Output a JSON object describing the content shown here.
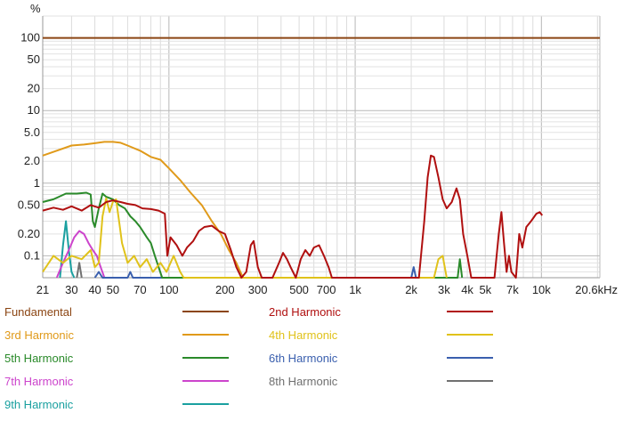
{
  "chart_data": {
    "type": "line",
    "title": "",
    "xlabel": "",
    "ylabel": "%",
    "x_scale": "log",
    "y_scale": "log",
    "xlim": [
      21,
      20600
    ],
    "ylim": [
      0.05,
      200
    ],
    "grid": true,
    "x_tick_labels": [
      {
        "value": 21,
        "label": "21"
      },
      {
        "value": 30,
        "label": "30"
      },
      {
        "value": 40,
        "label": "40"
      },
      {
        "value": 50,
        "label": "50"
      },
      {
        "value": 70,
        "label": "70"
      },
      {
        "value": 100,
        "label": "100"
      },
      {
        "value": 200,
        "label": "200"
      },
      {
        "value": 300,
        "label": "300"
      },
      {
        "value": 500,
        "label": "500"
      },
      {
        "value": 700,
        "label": "700"
      },
      {
        "value": 1000,
        "label": "1k"
      },
      {
        "value": 2000,
        "label": "2k"
      },
      {
        "value": 3000,
        "label": "3k"
      },
      {
        "value": 4000,
        "label": "4k"
      },
      {
        "value": 5000,
        "label": "5k"
      },
      {
        "value": 7000,
        "label": "7k"
      },
      {
        "value": 10000,
        "label": "10k"
      },
      {
        "value": 20600,
        "label": "20.6kHz"
      }
    ],
    "y_tick_labels": [
      {
        "value": 100,
        "label": "100"
      },
      {
        "value": 50,
        "label": "50"
      },
      {
        "value": 20,
        "label": "20"
      },
      {
        "value": 10,
        "label": "10"
      },
      {
        "value": 5,
        "label": "5.0"
      },
      {
        "value": 2,
        "label": "2.0"
      },
      {
        "value": 1,
        "label": "1"
      },
      {
        "value": 0.5,
        "label": "0.50"
      },
      {
        "value": 0.2,
        "label": "0.20"
      },
      {
        "value": 0.1,
        "label": "0.1"
      }
    ],
    "legend_position": "bottom",
    "series": [
      {
        "name": "Fundamental",
        "color": "#8b4513",
        "points": [
          [
            21,
            100
          ],
          [
            20600,
            100
          ]
        ]
      },
      {
        "name": "2nd Harmonic",
        "color": "#b01010",
        "points": [
          [
            21,
            0.42
          ],
          [
            24,
            0.46
          ],
          [
            27,
            0.43
          ],
          [
            30,
            0.48
          ],
          [
            34,
            0.42
          ],
          [
            38,
            0.5
          ],
          [
            42,
            0.46
          ],
          [
            46,
            0.55
          ],
          [
            50,
            0.58
          ],
          [
            55,
            0.55
          ],
          [
            60,
            0.52
          ],
          [
            66,
            0.5
          ],
          [
            72,
            0.45
          ],
          [
            80,
            0.44
          ],
          [
            88,
            0.42
          ],
          [
            95,
            0.38
          ],
          [
            98,
            0.1
          ],
          [
            102,
            0.18
          ],
          [
            110,
            0.14
          ],
          [
            118,
            0.1
          ],
          [
            125,
            0.13
          ],
          [
            135,
            0.16
          ],
          [
            145,
            0.22
          ],
          [
            155,
            0.25
          ],
          [
            170,
            0.26
          ],
          [
            185,
            0.22
          ],
          [
            200,
            0.2
          ],
          [
            215,
            0.12
          ],
          [
            230,
            0.07
          ],
          [
            245,
            0.05
          ],
          [
            260,
            0.06
          ],
          [
            275,
            0.14
          ],
          [
            285,
            0.16
          ],
          [
            300,
            0.07
          ],
          [
            315,
            0.05
          ],
          [
            360,
            0.05
          ],
          [
            390,
            0.08
          ],
          [
            410,
            0.11
          ],
          [
            430,
            0.09
          ],
          [
            450,
            0.07
          ],
          [
            480,
            0.05
          ],
          [
            510,
            0.09
          ],
          [
            540,
            0.12
          ],
          [
            570,
            0.1
          ],
          [
            600,
            0.13
          ],
          [
            640,
            0.14
          ],
          [
            680,
            0.1
          ],
          [
            720,
            0.07
          ],
          [
            750,
            0.05
          ],
          [
            2200,
            0.05
          ],
          [
            2350,
            0.3
          ],
          [
            2450,
            1.2
          ],
          [
            2550,
            2.4
          ],
          [
            2650,
            2.3
          ],
          [
            2800,
            1.2
          ],
          [
            2950,
            0.6
          ],
          [
            3100,
            0.45
          ],
          [
            3300,
            0.55
          ],
          [
            3500,
            0.85
          ],
          [
            3650,
            0.6
          ],
          [
            3800,
            0.2
          ],
          [
            4000,
            0.1
          ],
          [
            4200,
            0.05
          ],
          [
            5600,
            0.05
          ],
          [
            5900,
            0.2
          ],
          [
            6100,
            0.4
          ],
          [
            6300,
            0.15
          ],
          [
            6500,
            0.06
          ],
          [
            6700,
            0.1
          ],
          [
            6900,
            0.06
          ],
          [
            7300,
            0.05
          ],
          [
            7600,
            0.2
          ],
          [
            7900,
            0.13
          ],
          [
            8300,
            0.25
          ],
          [
            8800,
            0.3
          ],
          [
            9400,
            0.38
          ],
          [
            9800,
            0.4
          ],
          [
            10100,
            0.36
          ]
        ]
      },
      {
        "name": "3rd Harmonic",
        "color": "#e09a1a",
        "points": [
          [
            21,
            2.4
          ],
          [
            25,
            2.8
          ],
          [
            30,
            3.3
          ],
          [
            35,
            3.4
          ],
          [
            40,
            3.55
          ],
          [
            45,
            3.7
          ],
          [
            50,
            3.7
          ],
          [
            55,
            3.6
          ],
          [
            60,
            3.3
          ],
          [
            70,
            2.8
          ],
          [
            80,
            2.3
          ],
          [
            90,
            2.1
          ],
          [
            100,
            1.6
          ],
          [
            115,
            1.1
          ],
          [
            130,
            0.75
          ],
          [
            150,
            0.5
          ],
          [
            170,
            0.3
          ],
          [
            190,
            0.2
          ],
          [
            210,
            0.12
          ],
          [
            230,
            0.08
          ],
          [
            250,
            0.05
          ]
        ]
      },
      {
        "name": "4th Harmonic",
        "color": "#e0c21a",
        "points": [
          [
            21,
            0.06
          ],
          [
            24,
            0.1
          ],
          [
            27,
            0.08
          ],
          [
            30,
            0.1
          ],
          [
            34,
            0.09
          ],
          [
            38,
            0.12
          ],
          [
            40,
            0.07
          ],
          [
            42,
            0.08
          ],
          [
            44,
            0.35
          ],
          [
            46,
            0.62
          ],
          [
            48,
            0.4
          ],
          [
            50,
            0.55
          ],
          [
            52,
            0.6
          ],
          [
            54,
            0.3
          ],
          [
            56,
            0.15
          ],
          [
            60,
            0.08
          ],
          [
            65,
            0.1
          ],
          [
            70,
            0.07
          ],
          [
            76,
            0.09
          ],
          [
            82,
            0.06
          ],
          [
            90,
            0.08
          ],
          [
            97,
            0.06
          ],
          [
            106,
            0.1
          ],
          [
            115,
            0.06
          ],
          [
            120,
            0.05
          ],
          [
            2650,
            0.05
          ],
          [
            2800,
            0.09
          ],
          [
            2950,
            0.1
          ],
          [
            3100,
            0.05
          ]
        ]
      },
      {
        "name": "5th Harmonic",
        "color": "#2a8a2a",
        "points": [
          [
            21,
            0.55
          ],
          [
            24,
            0.6
          ],
          [
            28,
            0.72
          ],
          [
            32,
            0.72
          ],
          [
            36,
            0.74
          ],
          [
            38,
            0.7
          ],
          [
            39,
            0.3
          ],
          [
            40,
            0.25
          ],
          [
            42,
            0.45
          ],
          [
            44,
            0.72
          ],
          [
            46,
            0.65
          ],
          [
            50,
            0.6
          ],
          [
            54,
            0.5
          ],
          [
            58,
            0.45
          ],
          [
            62,
            0.35
          ],
          [
            66,
            0.3
          ],
          [
            70,
            0.25
          ],
          [
            76,
            0.18
          ],
          [
            80,
            0.15
          ],
          [
            84,
            0.1
          ],
          [
            88,
            0.07
          ],
          [
            92,
            0.05
          ],
          [
            3550,
            0.05
          ],
          [
            3650,
            0.09
          ],
          [
            3750,
            0.05
          ]
        ]
      },
      {
        "name": "6th Harmonic",
        "color": "#3a5fae",
        "points": [
          [
            40,
            0.05
          ],
          [
            42,
            0.06
          ],
          [
            44,
            0.05
          ],
          [
            60,
            0.05
          ],
          [
            62,
            0.06
          ],
          [
            64,
            0.05
          ],
          [
            2000,
            0.05
          ],
          [
            2060,
            0.07
          ],
          [
            2120,
            0.05
          ]
        ]
      },
      {
        "name": "7th Harmonic",
        "color": "#cc44cc",
        "points": [
          [
            25,
            0.05
          ],
          [
            27,
            0.08
          ],
          [
            29,
            0.12
          ],
          [
            31,
            0.18
          ],
          [
            33,
            0.22
          ],
          [
            35,
            0.2
          ],
          [
            37,
            0.15
          ],
          [
            39,
            0.12
          ],
          [
            41,
            0.1
          ],
          [
            43,
            0.07
          ],
          [
            45,
            0.05
          ]
        ]
      },
      {
        "name": "8th Harmonic",
        "color": "#707070",
        "points": [
          [
            32,
            0.05
          ],
          [
            33,
            0.08
          ],
          [
            34,
            0.05
          ]
        ]
      },
      {
        "name": "9th Harmonic",
        "color": "#1aa0a0",
        "points": [
          [
            26,
            0.05
          ],
          [
            27,
            0.14
          ],
          [
            28,
            0.3
          ],
          [
            29,
            0.12
          ],
          [
            30,
            0.06
          ],
          [
            31,
            0.05
          ]
        ]
      }
    ]
  }
}
